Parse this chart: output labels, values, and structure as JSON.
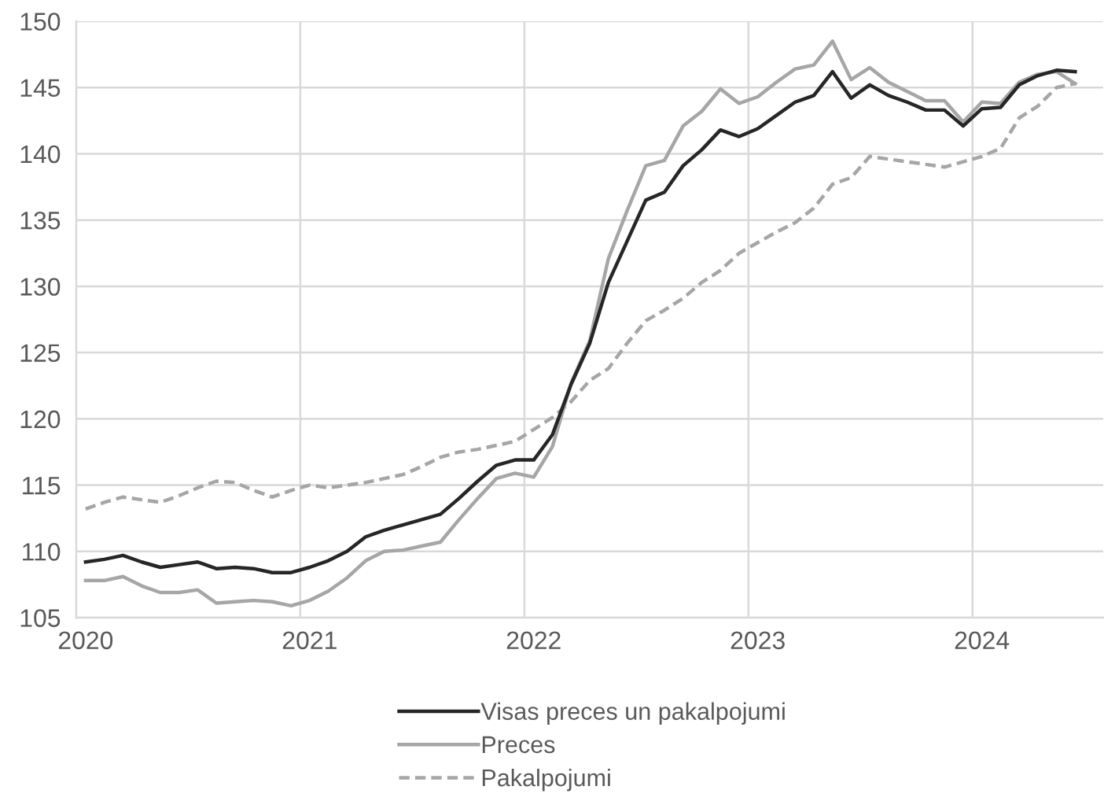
{
  "chart_data": {
    "type": "line",
    "categories": [
      "2020",
      null,
      null,
      null,
      null,
      null,
      null,
      null,
      null,
      null,
      null,
      null,
      "2021",
      null,
      null,
      null,
      null,
      null,
      null,
      null,
      null,
      null,
      null,
      null,
      "2022",
      null,
      null,
      null,
      null,
      null,
      null,
      null,
      null,
      null,
      null,
      null,
      "2023",
      null,
      null,
      null,
      null,
      null,
      null,
      null,
      null,
      null,
      null,
      null,
      "2024",
      null,
      null,
      null,
      null,
      null,
      null
    ],
    "series": [
      {
        "name": "Visas preces un pakalpojumi",
        "color": "#262626",
        "line_style": "solid",
        "values": [
          109.2,
          109.4,
          109.7,
          109.2,
          108.8,
          109.0,
          109.2,
          108.7,
          108.8,
          108.7,
          108.4,
          108.4,
          108.8,
          109.3,
          110.0,
          111.1,
          111.6,
          112.0,
          112.4,
          112.8,
          114.0,
          115.3,
          116.5,
          116.9,
          116.9,
          118.8,
          122.6,
          125.7,
          130.3,
          133.4,
          136.5,
          137.1,
          139.1,
          140.3,
          141.8,
          141.3,
          141.9,
          142.9,
          143.9,
          144.4,
          146.2,
          144.2,
          145.2,
          144.4,
          143.9,
          143.3,
          143.3,
          142.1,
          143.4,
          143.5,
          145.2,
          145.9,
          146.3,
          146.2,
          null
        ]
      },
      {
        "name": "Preces",
        "color": "#a6a6a6",
        "line_style": "solid",
        "values": [
          107.8,
          107.8,
          108.1,
          107.4,
          106.9,
          106.9,
          107.1,
          106.1,
          106.2,
          106.3,
          106.2,
          105.9,
          106.3,
          107.0,
          108.0,
          109.3,
          110.0,
          110.1,
          110.4,
          110.7,
          112.4,
          114.0,
          115.5,
          115.9,
          115.6,
          117.9,
          122.7,
          125.9,
          132.1,
          135.7,
          139.1,
          139.5,
          142.1,
          143.2,
          144.9,
          143.8,
          144.3,
          145.4,
          146.4,
          146.7,
          148.5,
          145.6,
          146.5,
          145.4,
          144.7,
          144.0,
          144.0,
          142.4,
          143.9,
          143.8,
          145.4,
          146.0,
          146.2,
          145.3,
          null
        ]
      },
      {
        "name": "Pakalpojumi",
        "color": "#a6a6a6",
        "line_style": "dashed",
        "values": [
          113.2,
          113.7,
          114.1,
          113.9,
          113.7,
          114.2,
          114.8,
          115.3,
          115.2,
          114.6,
          114.1,
          114.6,
          115.0,
          114.8,
          115.0,
          115.2,
          115.5,
          115.8,
          116.4,
          117.1,
          117.5,
          117.7,
          118.0,
          118.3,
          119.2,
          120.1,
          121.3,
          122.9,
          123.8,
          125.7,
          127.4,
          128.2,
          129.1,
          130.3,
          131.2,
          132.5,
          133.3,
          134.1,
          134.8,
          135.9,
          137.7,
          138.2,
          139.8,
          139.6,
          139.4,
          139.2,
          139.0,
          139.4,
          139.8,
          140.4,
          142.7,
          143.6,
          145.0,
          145.3,
          null
        ]
      }
    ],
    "ylim": [
      105,
      150
    ],
    "yticks": [
      105,
      110,
      115,
      120,
      125,
      130,
      135,
      140,
      145,
      150
    ],
    "grid": true,
    "legend": "bottom",
    "marker": "none"
  }
}
